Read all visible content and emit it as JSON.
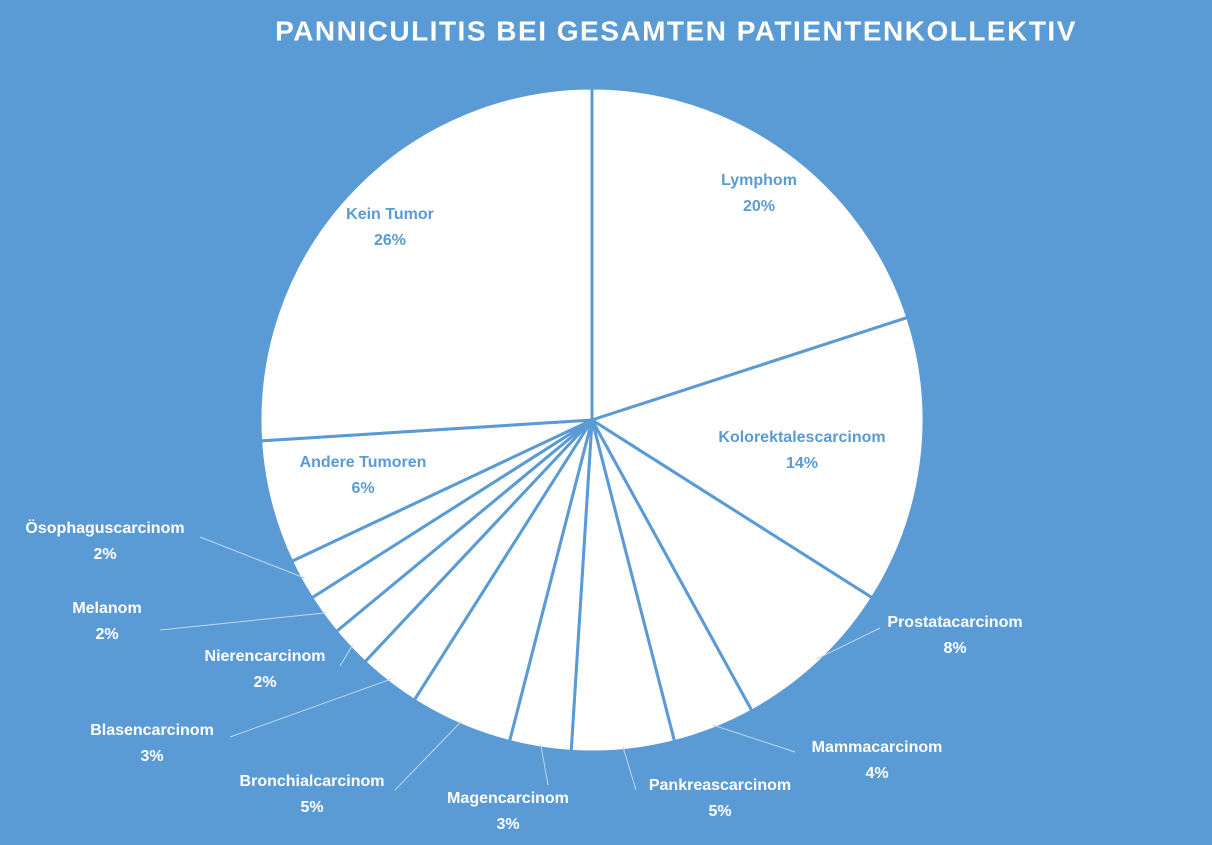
{
  "chart_data": {
    "type": "pie",
    "title": "PANNICULITIS BEI GESAMTEN PATIENTENKOLLEKTIV",
    "categories": [
      "Lymphom",
      "Kolorektalescarcinom",
      "Prostatacarcinom",
      "Mammacarcinom",
      "Pankreascarcinom",
      "Magencarcinom",
      "Bronchialcarcinom",
      "Blasencarcinom",
      "Nierencarcinom",
      "Melanom",
      "Ösophaguscarcinom",
      "Andere Tumoren",
      "Kein Tumor"
    ],
    "values": [
      20,
      14,
      8,
      4,
      5,
      3,
      5,
      3,
      2,
      2,
      2,
      6,
      26
    ],
    "value_labels": [
      "20%",
      "14%",
      "8%",
      "4%",
      "5%",
      "3%",
      "5%",
      "3%",
      "2%",
      "2%",
      "2%",
      "6%",
      "26%"
    ],
    "color": "#ffffff"
  }
}
